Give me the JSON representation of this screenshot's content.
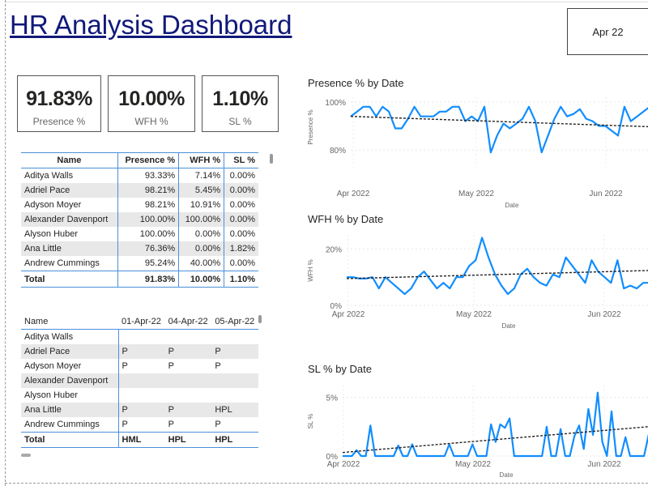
{
  "header": {
    "title": "HR Analysis Dashboard",
    "slicer_value": "Apr 22"
  },
  "kpis": [
    {
      "value": "91.83%",
      "label": "Presence %"
    },
    {
      "value": "10.00%",
      "label": "WFH %"
    },
    {
      "value": "1.10%",
      "label": "SL %"
    }
  ],
  "summary_table": {
    "columns": [
      "Name",
      "Presence %",
      "WFH %",
      "SL %"
    ],
    "rows": [
      [
        "Aditya Walls",
        "93.33%",
        "7.14%",
        "0.00%"
      ],
      [
        "Adriel Pace",
        "98.21%",
        "5.45%",
        "0.00%"
      ],
      [
        "Adyson Moyer",
        "98.21%",
        "10.91%",
        "0.00%"
      ],
      [
        "Alexander Davenport",
        "100.00%",
        "100.00%",
        "0.00%"
      ],
      [
        "Alyson Huber",
        "100.00%",
        "0.00%",
        "0.00%"
      ],
      [
        "Ana Little",
        "76.36%",
        "0.00%",
        "1.82%"
      ],
      [
        "Andrew Cummings",
        "95.24%",
        "40.00%",
        "0.00%"
      ]
    ],
    "total": [
      "Total",
      "91.83%",
      "10.00%",
      "1.10%"
    ]
  },
  "attendance_table": {
    "columns": [
      "Name",
      "01-Apr-22",
      "04-Apr-22",
      "05-Apr-22"
    ],
    "rows": [
      [
        "Aditya Walls",
        "",
        "",
        ""
      ],
      [
        "Adriel Pace",
        "P",
        "P",
        "P"
      ],
      [
        "Adyson Moyer",
        "P",
        "P",
        "P"
      ],
      [
        "Alexander Davenport",
        "",
        "",
        ""
      ],
      [
        "Alyson Huber",
        "",
        "",
        ""
      ],
      [
        "Ana Little",
        "P",
        "P",
        "HPL"
      ],
      [
        "Andrew Cummings",
        "P",
        "P",
        "P"
      ]
    ],
    "total": [
      "Total",
      "HML",
      "HPL",
      "HPL"
    ]
  },
  "chart_data": [
    {
      "type": "line",
      "title": "Presence % by Date",
      "xlabel": "Date",
      "ylabel": "Presence %",
      "x_ticks": [
        "Apr 2022",
        "May 2022",
        "Jun 2022"
      ],
      "y_ticks": [
        "80%",
        "100%"
      ],
      "ylim": [
        77,
        102
      ],
      "grid": true,
      "trend": {
        "start": 94,
        "end": 89.5
      },
      "values": [
        94,
        96,
        98,
        98,
        94,
        98,
        96,
        89,
        89,
        93,
        98,
        94,
        94,
        94,
        96,
        96,
        98,
        98,
        92,
        94,
        92,
        98,
        79,
        86,
        91,
        89,
        91,
        93,
        98,
        92,
        79,
        86,
        93,
        98,
        94,
        95,
        97,
        93,
        92,
        90,
        90,
        88,
        86,
        98,
        92,
        94,
        96,
        98,
        92,
        86
      ]
    },
    {
      "type": "line",
      "title": "WFH % by Date",
      "xlabel": "Date",
      "ylabel": "WFH %",
      "x_ticks": [
        "Apr 2022",
        "May 2022",
        "Jun 2022"
      ],
      "y_ticks": [
        "0%",
        "20%"
      ],
      "ylim": [
        0,
        25
      ],
      "grid": true,
      "trend": {
        "start": 9.5,
        "end": 12.5
      },
      "values": [
        10,
        10,
        9.5,
        9.5,
        10,
        6,
        10,
        8,
        6,
        4,
        6,
        10,
        12,
        9,
        6,
        8,
        6,
        10,
        10,
        14,
        16,
        24,
        17,
        11,
        7,
        4,
        6,
        11,
        13,
        10,
        8,
        7,
        11,
        10,
        17,
        14,
        11,
        8,
        16,
        12,
        10,
        8,
        16,
        6,
        7,
        6,
        8,
        8,
        12,
        14
      ]
    },
    {
      "type": "line",
      "title": "SL % by Date",
      "xlabel": "Date",
      "ylabel": "SL %",
      "x_ticks": [
        "Apr 2022",
        "May 2022",
        "Jun 2022"
      ],
      "y_ticks": [
        "0%",
        "5%"
      ],
      "ylim": [
        0,
        6
      ],
      "grid": true,
      "trend": {
        "start": 0.3,
        "end": 2.6
      },
      "values": [
        0,
        0,
        0,
        0.5,
        0,
        0,
        2.6,
        0,
        0,
        0,
        0,
        0,
        0.9,
        0,
        0,
        1,
        0,
        0,
        0,
        0,
        0,
        0,
        0,
        1,
        0,
        0,
        0,
        0,
        1,
        0,
        0,
        0,
        2.7,
        1.2,
        2.7,
        2.4,
        3.2,
        0,
        0,
        0,
        0,
        0,
        0,
        0,
        2.5,
        0,
        0,
        2.3,
        0,
        0,
        1.7,
        2.6,
        0.6,
        4,
        1.8,
        5.4,
        1.2,
        0,
        3.8,
        0,
        0,
        1.6,
        0,
        0,
        0,
        0,
        1.8,
        0,
        1.2,
        0
      ]
    }
  ]
}
